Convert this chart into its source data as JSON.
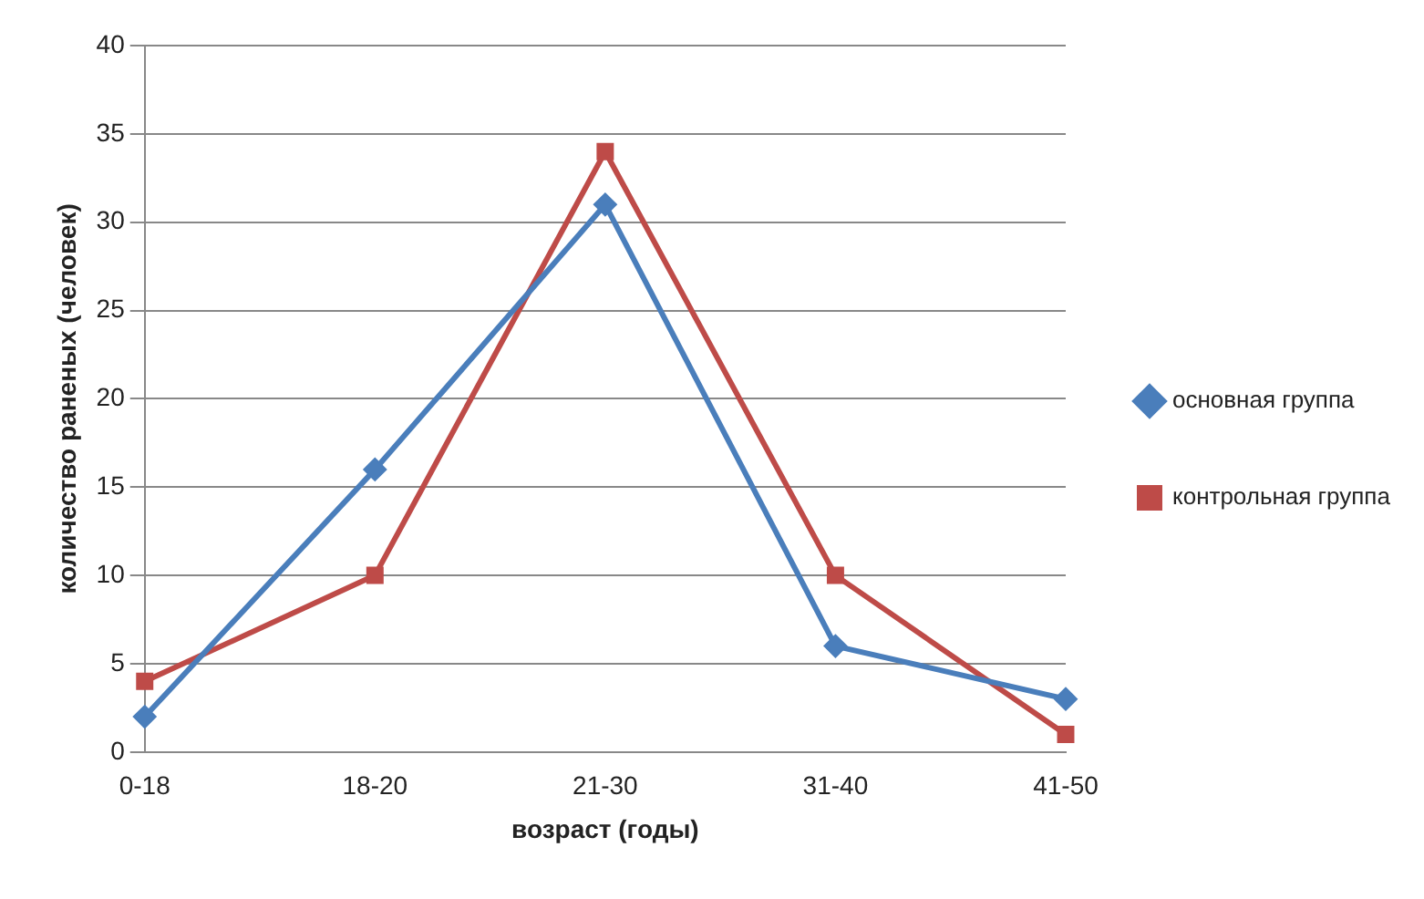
{
  "chart_data": {
    "type": "line",
    "xlabel": "возраст (годы)",
    "ylabel": "количество раненых (человек)",
    "categories": [
      "0-18",
      "18-20",
      "21-30",
      "31-40",
      "41-50"
    ],
    "series": [
      {
        "name": "основная группа",
        "color": "#4a7ebb",
        "marker": "diamond",
        "values": [
          2,
          16,
          31,
          6,
          3
        ]
      },
      {
        "name": "контрольная группа",
        "color": "#be4b48",
        "marker": "square",
        "values": [
          4,
          10,
          34,
          10,
          1
        ]
      }
    ],
    "ylim": [
      0,
      40
    ],
    "yticks": [
      0,
      5,
      10,
      15,
      20,
      25,
      30,
      35,
      40
    ],
    "grid": "y",
    "legend": "right"
  }
}
